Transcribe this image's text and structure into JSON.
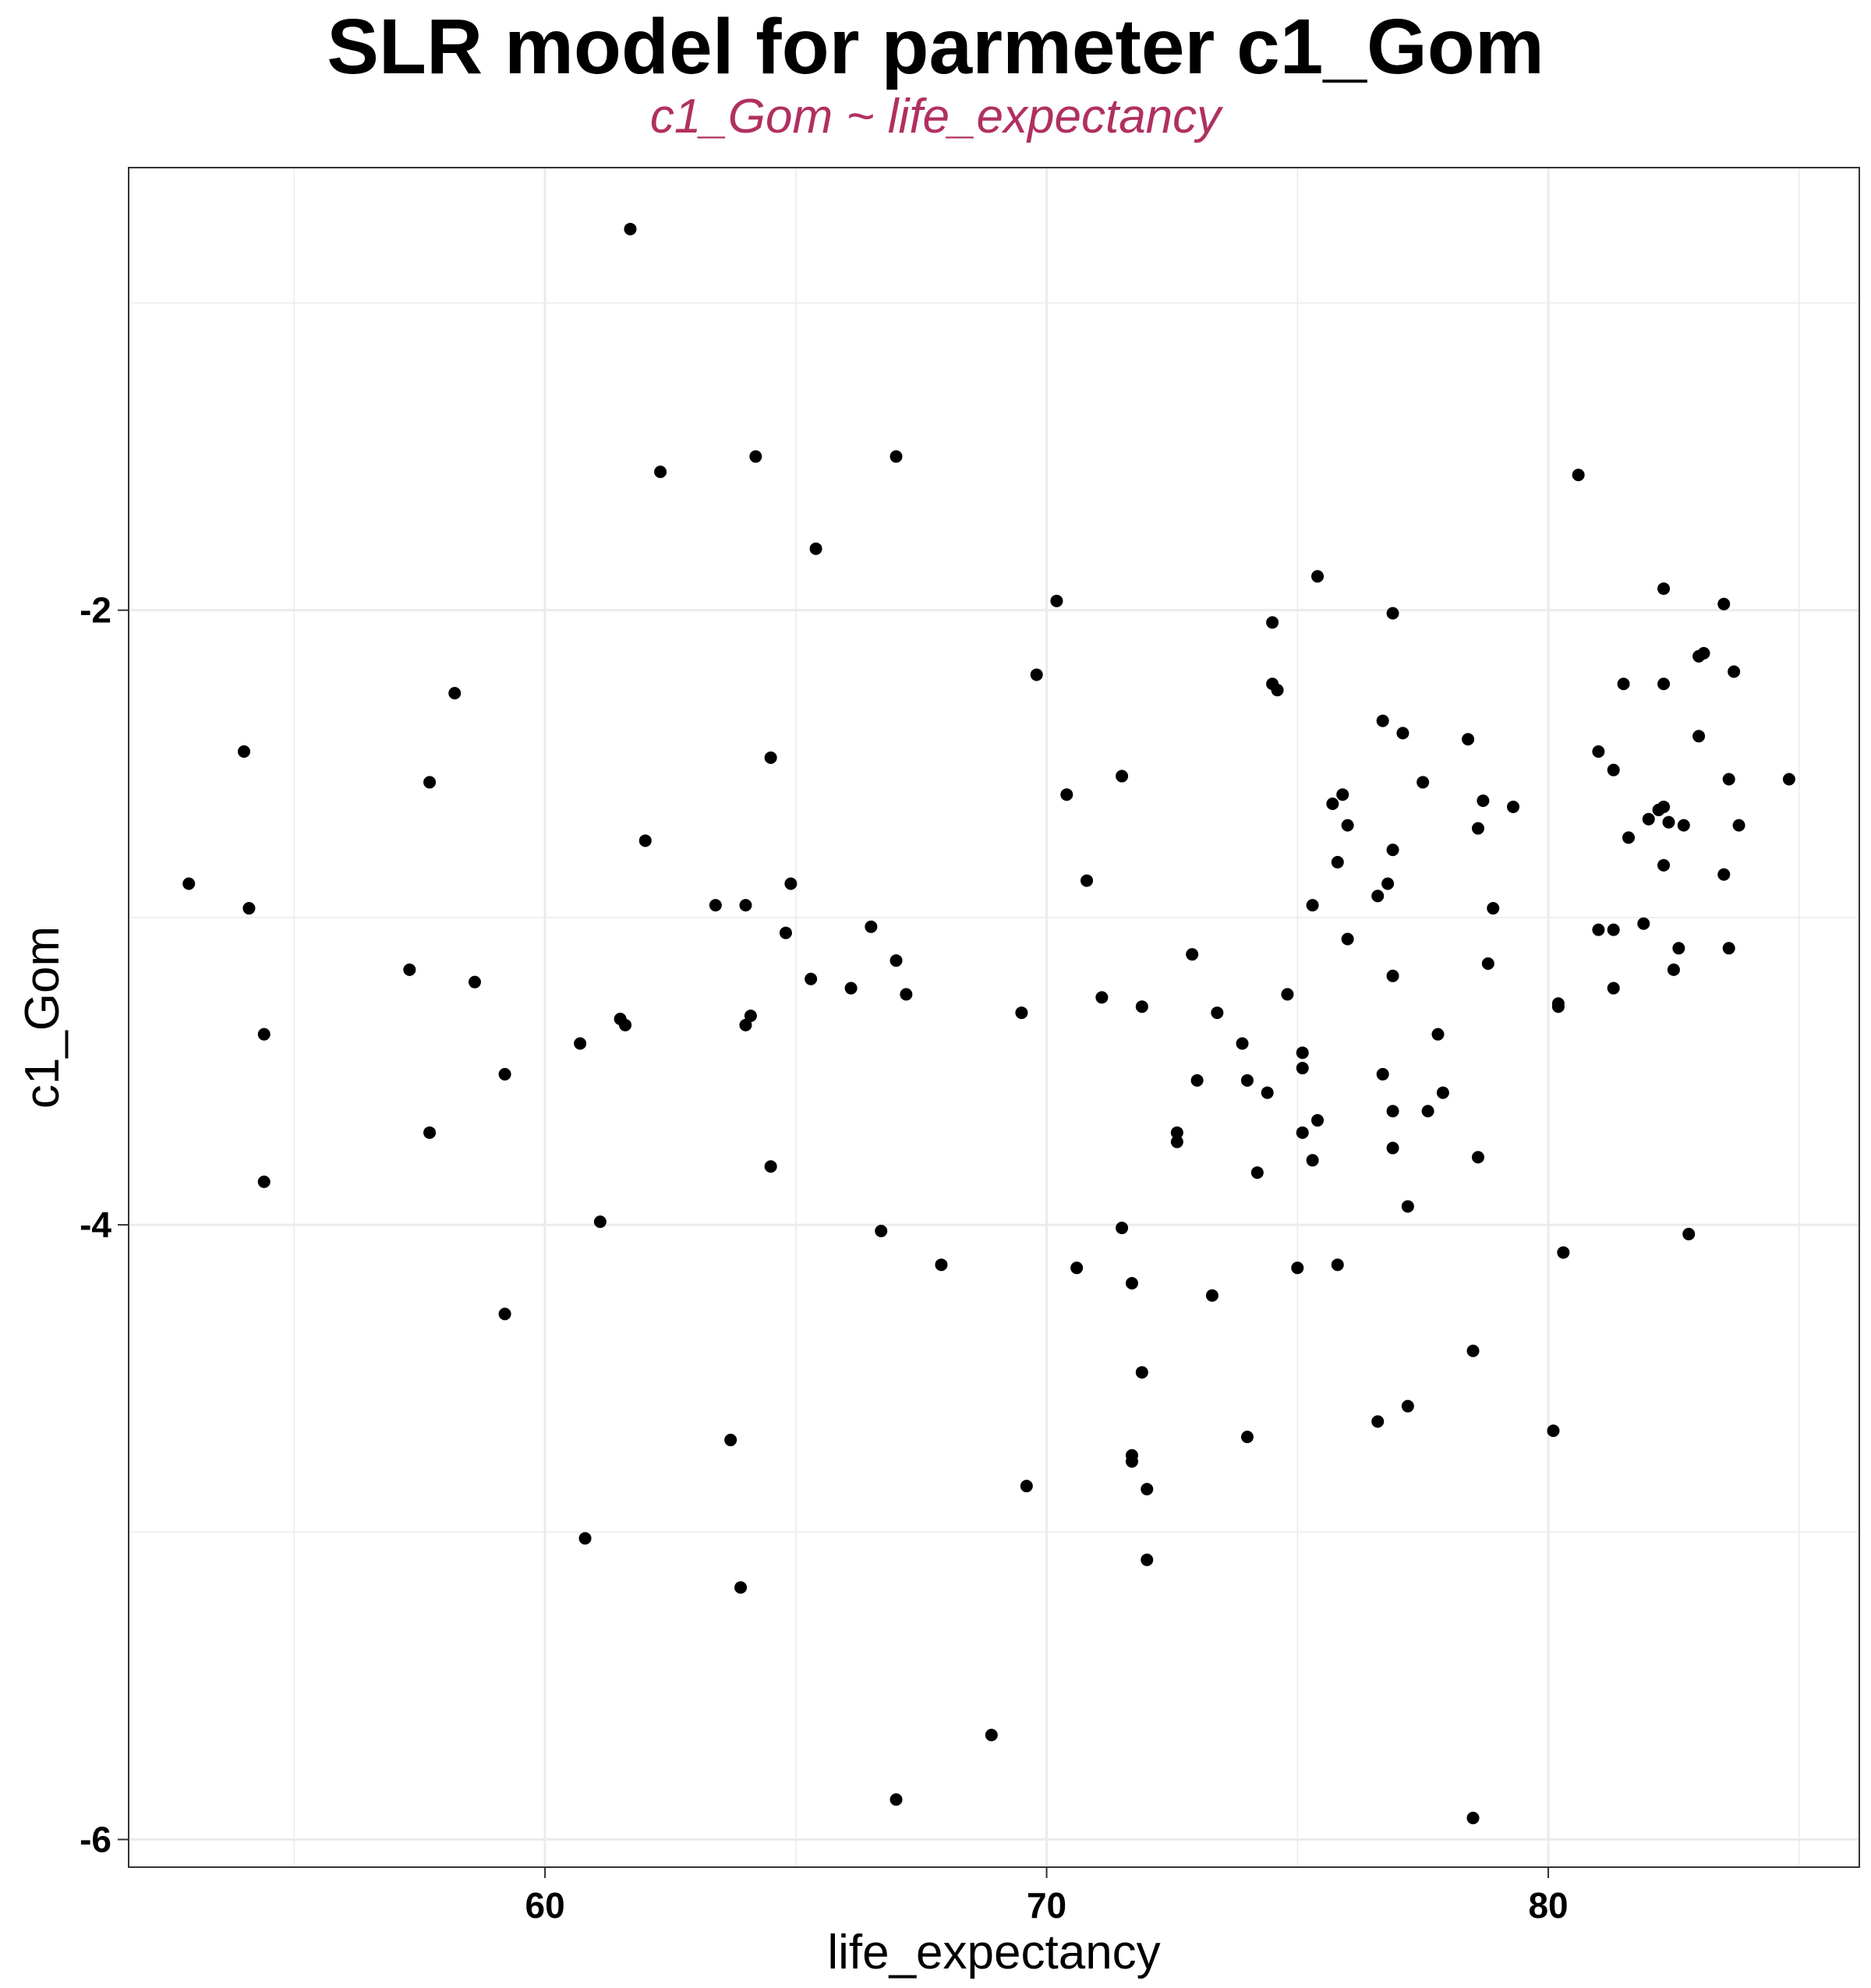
{
  "chart_data": {
    "type": "scatter",
    "title": "SLR model for parmeter c1_Gom",
    "subtitle": "c1_Gom ~ life_expectancy",
    "xlabel": "life_expectancy",
    "ylabel": "c1_Gom",
    "xlim": [
      51.7,
      86.2
    ],
    "ylim": [
      -6.09,
      -0.56
    ],
    "x_ticks": [
      60,
      70,
      80
    ],
    "x_tick_labels": [
      "60",
      "70",
      "80"
    ],
    "y_ticks": [
      -6,
      -4,
      -2
    ],
    "y_tick_labels": [
      "-6",
      "-4",
      "-2"
    ],
    "grid": true,
    "colors": {
      "point": "#000000",
      "subtitle": "#B03060",
      "grid": "#EBEBEB"
    },
    "points": [
      [
        61.7,
        -0.76
      ],
      [
        62.3,
        -1.55
      ],
      [
        64.2,
        -1.5
      ],
      [
        67.0,
        -1.5
      ],
      [
        65.4,
        -1.8
      ],
      [
        80.6,
        -1.56
      ],
      [
        75.4,
        -1.89
      ],
      [
        82.3,
        -1.93
      ],
      [
        76.9,
        -2.01
      ],
      [
        83.5,
        -1.98
      ],
      [
        70.2,
        -1.97
      ],
      [
        74.5,
        -2.04
      ],
      [
        83.0,
        -2.15
      ],
      [
        83.1,
        -2.14
      ],
      [
        69.8,
        -2.21
      ],
      [
        83.7,
        -2.2
      ],
      [
        74.5,
        -2.24
      ],
      [
        74.6,
        -2.26
      ],
      [
        81.5,
        -2.24
      ],
      [
        82.3,
        -2.24
      ],
      [
        58.2,
        -2.27
      ],
      [
        76.7,
        -2.36
      ],
      [
        77.1,
        -2.4
      ],
      [
        78.4,
        -2.42
      ],
      [
        83.0,
        -2.41
      ],
      [
        81.0,
        -2.46
      ],
      [
        54.0,
        -2.46
      ],
      [
        64.5,
        -2.48
      ],
      [
        81.3,
        -2.52
      ],
      [
        71.5,
        -2.54
      ],
      [
        84.8,
        -2.55
      ],
      [
        83.6,
        -2.55
      ],
      [
        57.7,
        -2.56
      ],
      [
        77.5,
        -2.56
      ],
      [
        75.9,
        -2.6
      ],
      [
        70.4,
        -2.6
      ],
      [
        78.7,
        -2.62
      ],
      [
        75.7,
        -2.63
      ],
      [
        79.3,
        -2.64
      ],
      [
        82.3,
        -2.64
      ],
      [
        82.2,
        -2.65
      ],
      [
        82.0,
        -2.68
      ],
      [
        82.4,
        -2.69
      ],
      [
        82.7,
        -2.7
      ],
      [
        76.0,
        -2.7
      ],
      [
        78.6,
        -2.71
      ],
      [
        83.8,
        -2.7
      ],
      [
        81.6,
        -2.74
      ],
      [
        62.0,
        -2.75
      ],
      [
        76.9,
        -2.78
      ],
      [
        75.8,
        -2.82
      ],
      [
        82.3,
        -2.83
      ],
      [
        83.5,
        -2.86
      ],
      [
        52.9,
        -2.89
      ],
      [
        64.9,
        -2.89
      ],
      [
        70.8,
        -2.88
      ],
      [
        76.8,
        -2.89
      ],
      [
        76.6,
        -2.93
      ],
      [
        54.1,
        -2.97
      ],
      [
        63.4,
        -2.96
      ],
      [
        64.0,
        -2.96
      ],
      [
        75.3,
        -2.96
      ],
      [
        78.9,
        -2.97
      ],
      [
        81.9,
        -3.02
      ],
      [
        81.0,
        -3.04
      ],
      [
        81.3,
        -3.04
      ],
      [
        66.5,
        -3.03
      ],
      [
        64.8,
        -3.05
      ],
      [
        76.0,
        -3.07
      ],
      [
        82.6,
        -3.1
      ],
      [
        72.9,
        -3.12
      ],
      [
        83.6,
        -3.1
      ],
      [
        67.0,
        -3.14
      ],
      [
        78.8,
        -3.15
      ],
      [
        82.5,
        -3.17
      ],
      [
        57.3,
        -3.17
      ],
      [
        58.6,
        -3.21
      ],
      [
        65.3,
        -3.2
      ],
      [
        76.9,
        -3.19
      ],
      [
        66.1,
        -3.23
      ],
      [
        81.3,
        -3.23
      ],
      [
        67.2,
        -3.25
      ],
      [
        71.1,
        -3.26
      ],
      [
        74.8,
        -3.25
      ],
      [
        80.2,
        -3.29
      ],
      [
        80.2,
        -3.28
      ],
      [
        71.9,
        -3.29
      ],
      [
        69.5,
        -3.31
      ],
      [
        61.5,
        -3.33
      ],
      [
        64.1,
        -3.32
      ],
      [
        73.4,
        -3.31
      ],
      [
        61.6,
        -3.35
      ],
      [
        64.0,
        -3.35
      ],
      [
        77.8,
        -3.38
      ],
      [
        54.4,
        -3.38
      ],
      [
        73.9,
        -3.41
      ],
      [
        60.7,
        -3.41
      ],
      [
        75.1,
        -3.44
      ],
      [
        75.1,
        -3.49
      ],
      [
        59.2,
        -3.51
      ],
      [
        76.7,
        -3.51
      ],
      [
        73.0,
        -3.53
      ],
      [
        74.0,
        -3.53
      ],
      [
        77.9,
        -3.57
      ],
      [
        74.4,
        -3.57
      ],
      [
        77.6,
        -3.63
      ],
      [
        76.9,
        -3.63
      ],
      [
        75.4,
        -3.66
      ],
      [
        57.7,
        -3.7
      ],
      [
        72.6,
        -3.7
      ],
      [
        75.1,
        -3.7
      ],
      [
        72.6,
        -3.73
      ],
      [
        76.9,
        -3.75
      ],
      [
        78.6,
        -3.78
      ],
      [
        75.3,
        -3.79
      ],
      [
        64.5,
        -3.81
      ],
      [
        74.2,
        -3.83
      ],
      [
        54.4,
        -3.86
      ],
      [
        77.2,
        -3.94
      ],
      [
        61.1,
        -3.99
      ],
      [
        66.7,
        -4.02
      ],
      [
        71.5,
        -4.01
      ],
      [
        82.8,
        -4.03
      ],
      [
        80.3,
        -4.09
      ],
      [
        67.9,
        -4.13
      ],
      [
        70.6,
        -4.14
      ],
      [
        75.0,
        -4.14
      ],
      [
        75.8,
        -4.13
      ],
      [
        71.7,
        -4.19
      ],
      [
        73.3,
        -4.23
      ],
      [
        59.2,
        -4.29
      ],
      [
        78.5,
        -4.41
      ],
      [
        71.9,
        -4.48
      ],
      [
        77.2,
        -4.59
      ],
      [
        76.6,
        -4.64
      ],
      [
        80.1,
        -4.67
      ],
      [
        63.7,
        -4.7
      ],
      [
        74.0,
        -4.69
      ],
      [
        71.7,
        -4.75
      ],
      [
        71.7,
        -4.77
      ],
      [
        69.6,
        -4.85
      ],
      [
        72.0,
        -4.86
      ],
      [
        60.8,
        -5.02
      ],
      [
        72.0,
        -5.09
      ],
      [
        63.9,
        -5.18
      ],
      [
        68.9,
        -5.66
      ],
      [
        67.0,
        -5.87
      ],
      [
        78.5,
        -5.93
      ]
    ]
  }
}
